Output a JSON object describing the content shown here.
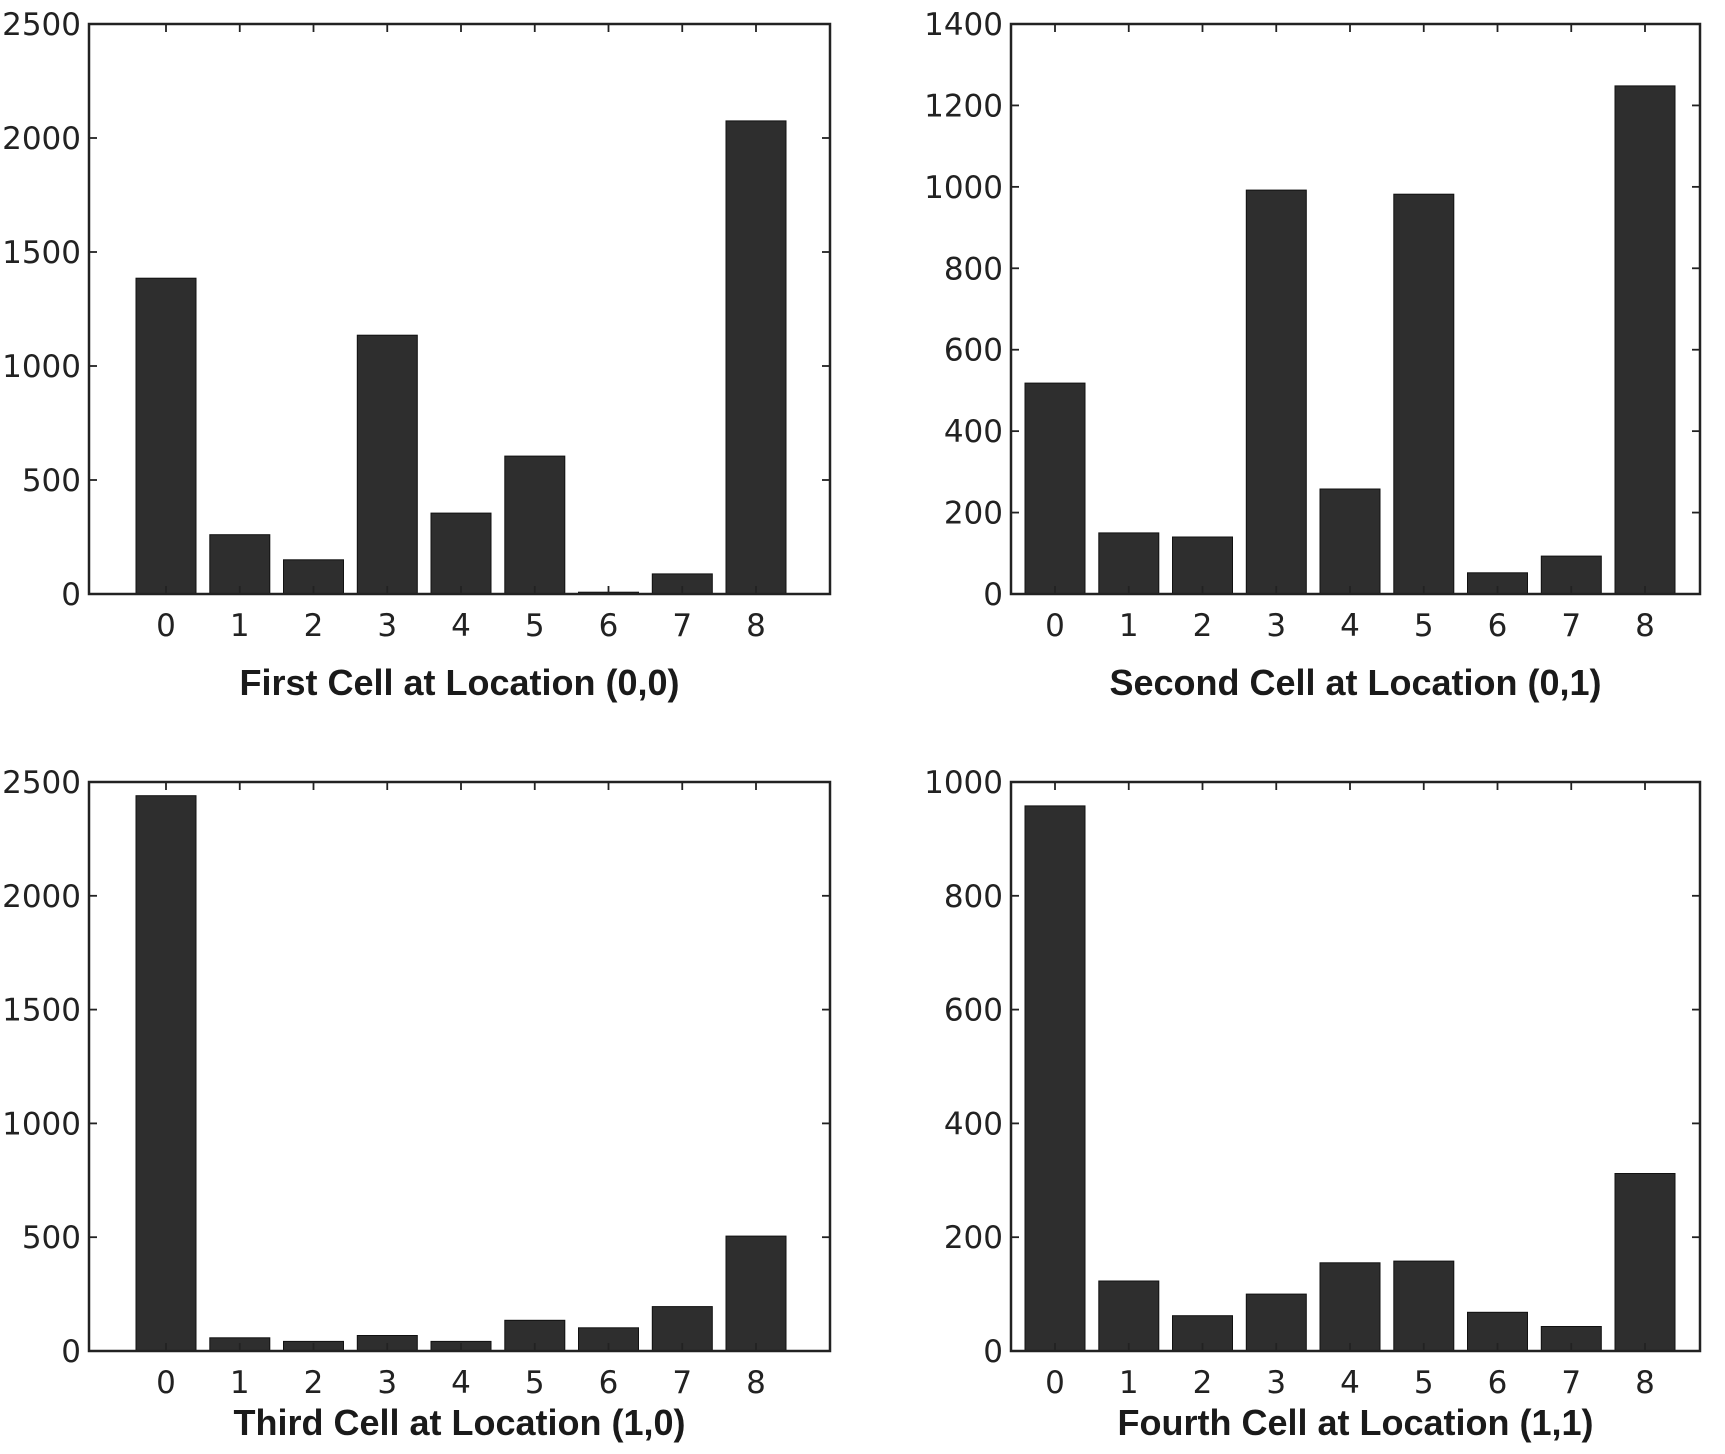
{
  "figure": {
    "bar_color": "#2e2e2e",
    "frame_color": "#222222",
    "background": "#ffffff"
  },
  "chart_data": [
    {
      "type": "bar",
      "title": "First Cell at Location (0,0)",
      "categories": [
        "0",
        "1",
        "2",
        "3",
        "4",
        "5",
        "6",
        "7",
        "8"
      ],
      "values": [
        1385,
        260,
        150,
        1135,
        355,
        605,
        8,
        88,
        2075
      ],
      "ylim": [
        0,
        2500
      ],
      "yticks": [
        0,
        500,
        1000,
        1500,
        2000,
        2500
      ],
      "grid": false
    },
    {
      "type": "bar",
      "title": "Second Cell at Location (0,1)",
      "categories": [
        "0",
        "1",
        "2",
        "3",
        "4",
        "5",
        "6",
        "7",
        "8"
      ],
      "values": [
        518,
        150,
        140,
        992,
        258,
        982,
        52,
        93,
        1248
      ],
      "ylim": [
        0,
        1400
      ],
      "yticks": [
        0,
        200,
        400,
        600,
        800,
        1000,
        1200,
        1400
      ],
      "grid": false
    },
    {
      "type": "bar",
      "title": "Third Cell at Location (1,0)",
      "categories": [
        "0",
        "1",
        "2",
        "3",
        "4",
        "5",
        "6",
        "7",
        "8"
      ],
      "values": [
        2440,
        58,
        42,
        68,
        42,
        135,
        102,
        195,
        505
      ],
      "ylim": [
        0,
        2500
      ],
      "yticks": [
        0,
        500,
        1000,
        1500,
        2000,
        2500
      ],
      "grid": false
    },
    {
      "type": "bar",
      "title": "Fourth Cell at Location (1,1)",
      "categories": [
        "0",
        "1",
        "2",
        "3",
        "4",
        "5",
        "6",
        "7",
        "8"
      ],
      "values": [
        958,
        123,
        62,
        100,
        155,
        158,
        68,
        43,
        312
      ],
      "ylim": [
        0,
        1000
      ],
      "yticks": [
        0,
        200,
        400,
        600,
        800,
        1000
      ],
      "grid": false
    }
  ]
}
